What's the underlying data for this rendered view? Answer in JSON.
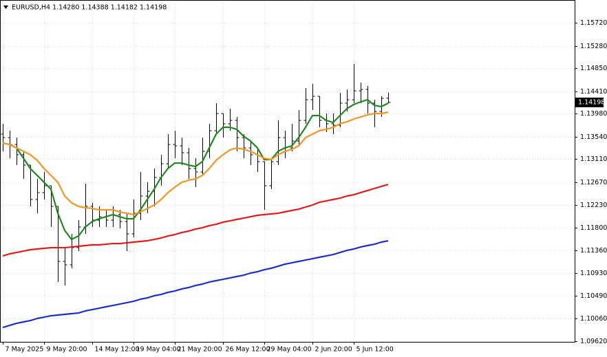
{
  "chart_data": {
    "type": "ohlc",
    "title": "EURUSD,H4  1.14280 1.14388 1.14182 1.14198",
    "categories": [
      "7 May 2025",
      null,
      null,
      null,
      null,
      null,
      "9 May 20:00",
      null,
      null,
      null,
      null,
      null,
      null,
      "14 May 12:00",
      null,
      null,
      null,
      null,
      null,
      "19 May 04:00",
      null,
      null,
      null,
      null,
      null,
      "21 May 20:00",
      null,
      null,
      null,
      null,
      null,
      null,
      "26 May 12:00",
      null,
      null,
      null,
      null,
      null,
      "29 May 04:00",
      null,
      null,
      null,
      null,
      null,
      null,
      "2 Jun 20:00",
      null,
      null,
      null,
      null,
      null,
      "5 Jun 12:00",
      null,
      null,
      null,
      null,
      null
    ],
    "open": [
      1.1359,
      1.13524,
      1.13392,
      1.13195,
      1.12997,
      1.12338,
      1.1247,
      1.12601,
      1.12206,
      1.11152,
      1.11086,
      1.11415,
      1.11811,
      1.12206,
      1.11942,
      1.12008,
      1.11942,
      1.12048,
      1.11916,
      1.11679,
      1.12074,
      1.12404,
      1.12496,
      1.1276,
      1.13023,
      1.13392,
      1.13366,
      1.13234,
      1.12931,
      1.12865,
      1.1326,
      1.13656,
      1.13985,
      1.13788,
      1.13854,
      1.13524,
      1.13326,
      1.13195,
      1.13063,
      1.12601,
      1.13063,
      1.13524,
      1.13326,
      1.13458,
      1.13854,
      1.14249,
      1.14315,
      1.13854,
      1.13788,
      1.13761,
      1.14183,
      1.14249,
      1.1442,
      1.14447,
      1.14183,
      1.14025,
      1.1428
    ],
    "high": [
      1.13788,
      1.13656,
      1.13524,
      1.1326,
      1.12997,
      1.12733,
      1.12865,
      1.12601,
      1.12206,
      1.11415,
      1.11679,
      1.11942,
      1.12641,
      1.12272,
      1.12206,
      1.1214,
      1.12206,
      1.1214,
      1.12074,
      1.12338,
      1.12865,
      1.12667,
      1.12931,
      1.13195,
      1.1359,
      1.13656,
      1.13524,
      1.13326,
      1.13129,
      1.13524,
      1.13788,
      1.14183,
      1.13985,
      1.14078,
      1.13919,
      1.1359,
      1.13458,
      1.13326,
      1.13063,
      1.13129,
      1.13854,
      1.13656,
      1.13788,
      1.14051,
      1.14473,
      1.14552,
      1.14315,
      1.13985,
      1.13985,
      1.14381,
      1.14447,
      1.14934,
      1.14578,
      1.14513,
      1.14249,
      1.14315,
      1.14388
    ],
    "low": [
      1.1326,
      1.13129,
      1.12997,
      1.12733,
      1.12206,
      1.12074,
      1.12338,
      1.11811,
      1.10756,
      1.1069,
      1.1102,
      1.11349,
      1.11679,
      1.11811,
      1.11811,
      1.11811,
      1.11811,
      1.11784,
      1.11349,
      1.11613,
      1.11942,
      1.12074,
      1.12206,
      1.12601,
      1.12931,
      1.13129,
      1.12997,
      1.12733,
      1.12575,
      1.12799,
      1.13129,
      1.1359,
      1.13524,
      1.13656,
      1.1326,
      1.13129,
      1.12997,
      1.12865,
      1.1214,
      1.12536,
      1.12997,
      1.13129,
      1.1326,
      1.13392,
      1.13788,
      1.14051,
      1.13722,
      1.13629,
      1.1359,
      1.13722,
      1.14025,
      1.14183,
      1.14183,
      1.13985,
      1.13722,
      1.13919,
      1.14182
    ],
    "close": [
      1.13524,
      1.13392,
      1.13195,
      1.12997,
      1.12338,
      1.1247,
      1.12601,
      1.12206,
      1.11152,
      1.11086,
      1.11415,
      1.11811,
      1.12206,
      1.11942,
      1.12008,
      1.11942,
      1.12048,
      1.11916,
      1.11679,
      1.12074,
      1.12404,
      1.12496,
      1.1276,
      1.13023,
      1.13392,
      1.13366,
      1.13234,
      1.12931,
      1.12865,
      1.1326,
      1.13656,
      1.13985,
      1.13788,
      1.13854,
      1.13524,
      1.13326,
      1.13195,
      1.13063,
      1.12601,
      1.13063,
      1.13524,
      1.13326,
      1.13458,
      1.13854,
      1.14249,
      1.14315,
      1.13854,
      1.13788,
      1.13761,
      1.14183,
      1.14249,
      1.1442,
      1.14447,
      1.14183,
      1.14025,
      1.14275,
      1.14198
    ],
    "bar_color": "#000000",
    "series": [
      {
        "color": "#1a8a1a",
        "values": [
          1.13419,
          1.13392,
          1.13326,
          1.13129,
          1.12931,
          1.12799,
          1.12667,
          1.12536,
          1.12074,
          1.11745,
          1.11573,
          1.11639,
          1.11811,
          1.11916,
          1.11969,
          1.12008,
          1.12048,
          1.12008,
          1.11969,
          1.11969,
          1.1214,
          1.12338,
          1.12536,
          1.1276,
          1.12931,
          1.13036,
          1.13036,
          1.12997,
          1.1297,
          1.13063,
          1.13326,
          1.1359,
          1.13722,
          1.13722,
          1.13682,
          1.1355,
          1.13458,
          1.13326,
          1.13102,
          1.13102,
          1.1326,
          1.13326,
          1.13366,
          1.13524,
          1.13722,
          1.13946,
          1.13946,
          1.13854,
          1.13814,
          1.13946,
          1.14078,
          1.14157,
          1.14209,
          1.14249,
          1.14143,
          1.14117,
          1.14183
        ]
      },
      {
        "color": "#f7941d",
        "values": [
          1.13419,
          1.13392,
          1.13326,
          1.1326,
          1.13195,
          1.13089,
          1.12931,
          1.12799,
          1.12667,
          1.12404,
          1.12272,
          1.12206,
          1.1218,
          1.12166,
          1.1214,
          1.1214,
          1.1214,
          1.12101,
          1.12074,
          1.12048,
          1.12101,
          1.12166,
          1.12232,
          1.12338,
          1.1247,
          1.12575,
          1.12667,
          1.12707,
          1.12733,
          1.12799,
          1.12931,
          1.13089,
          1.13195,
          1.13287,
          1.13326,
          1.133,
          1.1326,
          1.13195,
          1.13129,
          1.13102,
          1.13195,
          1.1326,
          1.133,
          1.13366,
          1.13524,
          1.1359,
          1.13656,
          1.13682,
          1.13722,
          1.13788,
          1.13827,
          1.1388,
          1.13919,
          1.13959,
          1.13985,
          1.13985,
          1.14012
        ]
      },
      {
        "color": "#e31a1c",
        "values": [
          1.11257,
          1.11297,
          1.11323,
          1.11349,
          1.11376,
          1.11389,
          1.11402,
          1.11415,
          1.11415,
          1.11415,
          1.11428,
          1.11442,
          1.11455,
          1.11468,
          1.11468,
          1.11481,
          1.11494,
          1.11494,
          1.11507,
          1.11521,
          1.11534,
          1.11547,
          1.11573,
          1.116,
          1.11639,
          1.11666,
          1.11705,
          1.11732,
          1.11771,
          1.11797,
          1.11837,
          1.11863,
          1.11903,
          1.11929,
          1.11956,
          1.11982,
          1.12008,
          1.12035,
          1.12048,
          1.12061,
          1.12074,
          1.12101,
          1.12127,
          1.12153,
          1.12193,
          1.12232,
          1.12285,
          1.12311,
          1.12338,
          1.12364,
          1.12404,
          1.1243,
          1.1247,
          1.12509,
          1.12549,
          1.12588,
          1.12628
        ]
      },
      {
        "color": "#1c2fc4",
        "values": [
          1.09886,
          1.09926,
          1.09965,
          1.09992,
          1.10018,
          1.10058,
          1.10084,
          1.1011,
          1.10124,
          1.10137,
          1.1015,
          1.10163,
          1.10203,
          1.10229,
          1.10255,
          1.10282,
          1.10308,
          1.10334,
          1.10361,
          1.10387,
          1.10427,
          1.10453,
          1.10493,
          1.10519,
          1.10558,
          1.10585,
          1.10624,
          1.10651,
          1.1069,
          1.10717,
          1.10756,
          1.10783,
          1.10809,
          1.10835,
          1.10862,
          1.10888,
          1.10928,
          1.10954,
          1.10993,
          1.1102,
          1.11059,
          1.11099,
          1.11125,
          1.11152,
          1.11178,
          1.11204,
          1.11231,
          1.11257,
          1.11283,
          1.11323,
          1.11362,
          1.11389,
          1.11428,
          1.11455,
          1.11481,
          1.11521,
          1.11547
        ]
      }
    ],
    "ylim": [
      1.0961,
      1.1616
    ],
    "yticks": [
      {
        "value": 1.1572,
        "label": "1.15720"
      },
      {
        "value": 1.1528,
        "label": "1.15280"
      },
      {
        "value": 1.1485,
        "label": "1.14850"
      },
      {
        "value": 1.1441,
        "label": "1.14410"
      },
      {
        "value": 1.1398,
        "label": "1.13980"
      },
      {
        "value": 1.1354,
        "label": "1.13540"
      },
      {
        "value": 1.1311,
        "label": "1.13110"
      },
      {
        "value": 1.1267,
        "label": "1.12670"
      },
      {
        "value": 1.1223,
        "label": "1.12230"
      },
      {
        "value": 1.118,
        "label": "1.11800"
      },
      {
        "value": 1.1136,
        "label": "1.11360"
      },
      {
        "value": 1.1093,
        "label": "1.10930"
      },
      {
        "value": 1.1049,
        "label": "1.10490"
      },
      {
        "value": 1.1006,
        "label": "1.10060"
      },
      {
        "value": 1.0962,
        "label": "1.09620"
      }
    ],
    "grid": true
  }
}
